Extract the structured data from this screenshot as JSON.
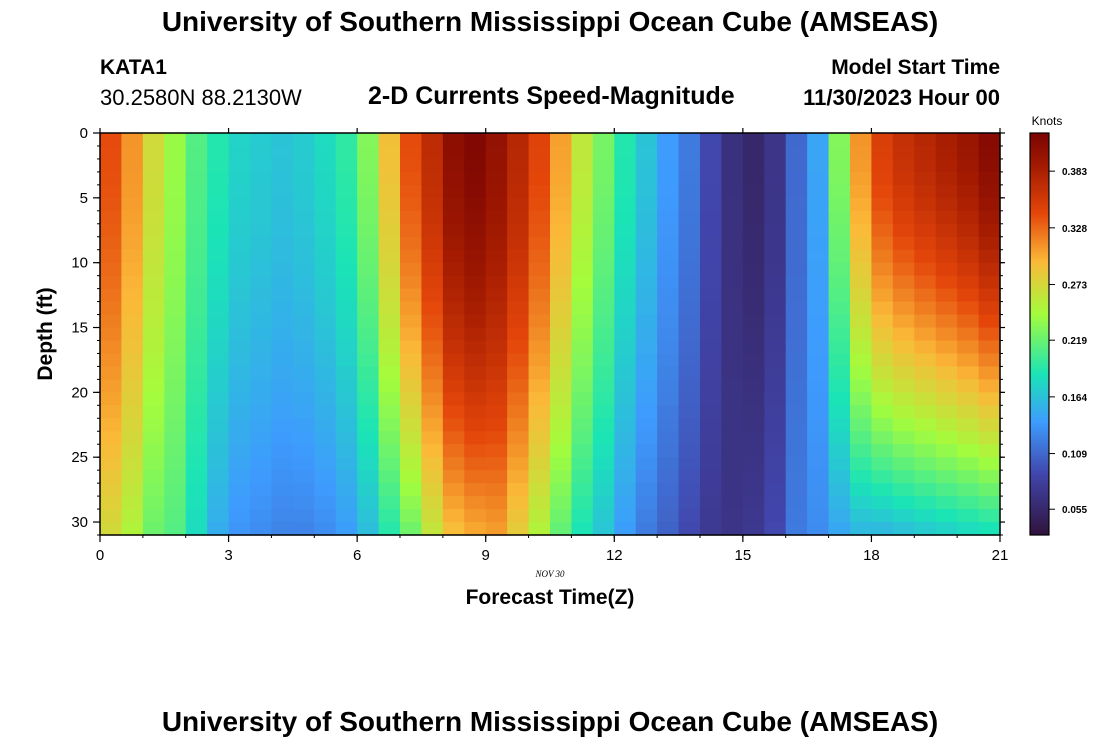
{
  "header": {
    "title": "University of Southern Mississippi Ocean Cube (AMSEAS)",
    "station_id": "KATA1",
    "coordinates": "30.2580N  88.2130W",
    "chart_title": "2-D Currents Speed-Magnitude",
    "model_start_label": "Model Start Time",
    "model_start_value": "11/30/2023 Hour 00"
  },
  "footer": {
    "title": "University of Southern Mississippi Ocean Cube (AMSEAS)"
  },
  "chart_data": {
    "type": "heatmap",
    "title": "2-D Currents Speed-Magnitude",
    "xlabel": "Forecast Time(Z)",
    "ylabel": "Depth (ft)",
    "date_label": "NOV  30",
    "xlim": [
      0,
      21
    ],
    "ylim": [
      0,
      31
    ],
    "x_ticks": [
      0,
      3,
      6,
      9,
      12,
      15,
      18,
      21
    ],
    "y_ticks": [
      0,
      5,
      10,
      15,
      20,
      25,
      30
    ],
    "colorbar": {
      "label": "Knots",
      "range": [
        0.03,
        0.42
      ],
      "ticks": [
        "0.055",
        "0.109",
        "0.164",
        "0.219",
        "0.273",
        "0.328",
        "0.383"
      ],
      "tick_values": [
        0.055,
        0.109,
        0.164,
        0.219,
        0.273,
        0.328,
        0.383
      ]
    },
    "columns": [
      {
        "hour": 0.25,
        "surface": 0.34,
        "bottom": 0.27
      },
      {
        "hour": 0.75,
        "surface": 0.31,
        "bottom": 0.25
      },
      {
        "hour": 1.25,
        "surface": 0.27,
        "bottom": 0.22
      },
      {
        "hour": 1.75,
        "surface": 0.24,
        "bottom": 0.21
      },
      {
        "hour": 2.25,
        "surface": 0.21,
        "bottom": 0.18
      },
      {
        "hour": 2.75,
        "surface": 0.19,
        "bottom": 0.15
      },
      {
        "hour": 3.25,
        "surface": 0.175,
        "bottom": 0.135
      },
      {
        "hour": 3.75,
        "surface": 0.17,
        "bottom": 0.13
      },
      {
        "hour": 4.25,
        "surface": 0.165,
        "bottom": 0.125
      },
      {
        "hour": 4.75,
        "surface": 0.17,
        "bottom": 0.125
      },
      {
        "hour": 5.25,
        "surface": 0.18,
        "bottom": 0.13
      },
      {
        "hour": 5.75,
        "surface": 0.195,
        "bottom": 0.14
      },
      {
        "hour": 6.25,
        "surface": 0.23,
        "bottom": 0.16
      },
      {
        "hour": 6.75,
        "surface": 0.29,
        "bottom": 0.19
      },
      {
        "hour": 7.25,
        "surface": 0.34,
        "bottom": 0.22
      },
      {
        "hour": 7.75,
        "surface": 0.37,
        "bottom": 0.26
      },
      {
        "hour": 8.25,
        "surface": 0.405,
        "bottom": 0.29
      },
      {
        "hour": 8.75,
        "surface": 0.415,
        "bottom": 0.3
      },
      {
        "hour": 9.25,
        "surface": 0.4,
        "bottom": 0.305
      },
      {
        "hour": 9.75,
        "surface": 0.375,
        "bottom": 0.28
      },
      {
        "hour": 10.25,
        "surface": 0.345,
        "bottom": 0.25
      },
      {
        "hour": 10.75,
        "surface": 0.305,
        "bottom": 0.215
      },
      {
        "hour": 11.25,
        "surface": 0.26,
        "bottom": 0.185
      },
      {
        "hour": 11.75,
        "surface": 0.225,
        "bottom": 0.165
      },
      {
        "hour": 12.25,
        "surface": 0.19,
        "bottom": 0.14
      },
      {
        "hour": 12.75,
        "surface": 0.165,
        "bottom": 0.12
      },
      {
        "hour": 13.25,
        "surface": 0.14,
        "bottom": 0.105
      },
      {
        "hour": 13.75,
        "surface": 0.12,
        "bottom": 0.09
      },
      {
        "hour": 14.25,
        "surface": 0.09,
        "bottom": 0.075
      },
      {
        "hour": 14.75,
        "surface": 0.065,
        "bottom": 0.07
      },
      {
        "hour": 15.25,
        "surface": 0.055,
        "bottom": 0.075
      },
      {
        "hour": 15.75,
        "surface": 0.07,
        "bottom": 0.09
      },
      {
        "hour": 16.25,
        "surface": 0.11,
        "bottom": 0.12
      },
      {
        "hour": 16.75,
        "surface": 0.145,
        "bottom": 0.13
      },
      {
        "hour": 17.25,
        "surface": 0.23,
        "bottom": 0.145
      },
      {
        "hour": 17.75,
        "surface": 0.31,
        "bottom": 0.155
      },
      {
        "hour": 18.25,
        "surface": 0.35,
        "bottom": 0.155
      },
      {
        "hour": 18.75,
        "surface": 0.365,
        "bottom": 0.16
      },
      {
        "hour": 19.25,
        "surface": 0.375,
        "bottom": 0.165
      },
      {
        "hour": 19.75,
        "surface": 0.385,
        "bottom": 0.17
      },
      {
        "hour": 20.25,
        "surface": 0.395,
        "bottom": 0.175
      },
      {
        "hour": 20.75,
        "surface": 0.41,
        "bottom": 0.18
      }
    ]
  }
}
